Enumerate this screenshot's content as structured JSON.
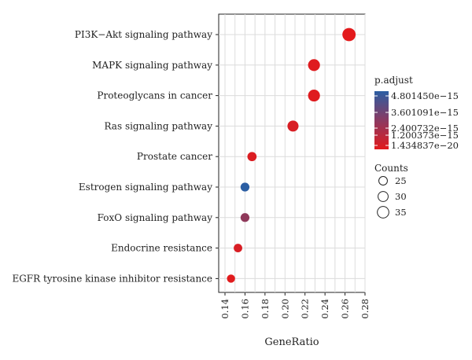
{
  "chart_data": {
    "type": "scatter",
    "xlabel": "GeneRatio",
    "ylabel": "",
    "xlim": [
      0.14,
      0.28
    ],
    "x_ticks": [
      "0.14",
      "0.16",
      "0.18",
      "0.20",
      "0.22",
      "0.24",
      "0.26",
      "0.28"
    ],
    "categories": [
      "PI3K−Akt signaling pathway",
      "MAPK signaling pathway",
      "Proteoglycans in cancer",
      "Ras signaling pathway",
      "Prostate cancer",
      "Estrogen signaling pathway",
      "FoxO signaling pathway",
      "Endocrine resistance",
      "EGFR tyrosine kinase inhibitor resistance"
    ],
    "points": [
      {
        "category": "PI3K−Akt signaling pathway",
        "gene_ratio": 0.264,
        "count": 38,
        "p_adjust": 1.4e-20
      },
      {
        "category": "MAPK signaling pathway",
        "gene_ratio": 0.229,
        "count": 33,
        "p_adjust": 1e-16
      },
      {
        "category": "Proteoglycans in cancer",
        "gene_ratio": 0.229,
        "count": 33,
        "p_adjust": 1e-16
      },
      {
        "category": "Ras signaling pathway",
        "gene_ratio": 0.208,
        "count": 30,
        "p_adjust": 3e-16
      },
      {
        "category": "Prostate cancer",
        "gene_ratio": 0.167,
        "count": 24,
        "p_adjust": 2e-16
      },
      {
        "category": "Estrogen signaling pathway",
        "gene_ratio": 0.16,
        "count": 23,
        "p_adjust": 4.8e-15
      },
      {
        "category": "FoxO signaling pathway",
        "gene_ratio": 0.16,
        "count": 23,
        "p_adjust": 2.2e-15
      },
      {
        "category": "Endocrine resistance",
        "gene_ratio": 0.153,
        "count": 22,
        "p_adjust": 3e-16
      },
      {
        "category": "EGFR tyrosine kinase inhibitor resistance",
        "gene_ratio": 0.146,
        "count": 21,
        "p_adjust": 4e-17
      }
    ],
    "color_legend": {
      "title": "p.adjust",
      "labels": [
        "4.801450e−15",
        "3.601091e−15",
        "2.400732e−15",
        "1.200373e−15",
        "1.434837e−20"
      ],
      "label_values": [
        4.80145e-15,
        3.601091e-15,
        2.400732e-15,
        1.200373e-15,
        1.434837e-20
      ],
      "low_color": "#e31a1c",
      "high_color": "#2b5ea3"
    },
    "size_legend": {
      "title": "Counts",
      "labels": [
        "25",
        "30",
        "35"
      ],
      "values": [
        25,
        30,
        35
      ]
    },
    "panel_background": "#ffffff",
    "grid": true,
    "grid_color": "#dcdcdc",
    "legend_position": "right"
  }
}
